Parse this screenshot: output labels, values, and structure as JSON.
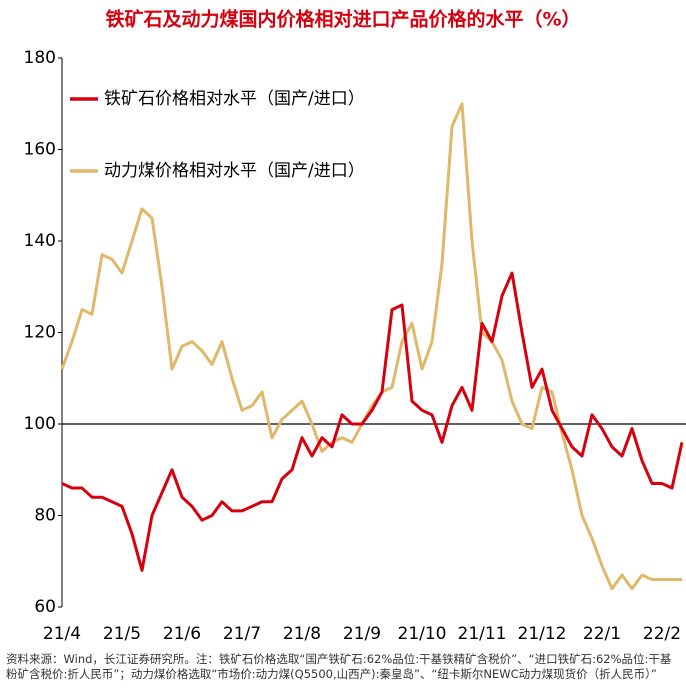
{
  "chart_data": {
    "type": "line",
    "title": "铁矿石及动力煤国内价格相对进口产品价格的水平（%）",
    "categories": [
      "21/4",
      null,
      null,
      null,
      null,
      null,
      "21/5",
      null,
      null,
      null,
      null,
      null,
      "21/6",
      null,
      null,
      null,
      null,
      null,
      "21/7",
      null,
      null,
      null,
      null,
      null,
      "21/8",
      null,
      null,
      null,
      null,
      null,
      "21/9",
      null,
      null,
      null,
      null,
      null,
      "21/10",
      null,
      null,
      null,
      null,
      null,
      "21/11",
      null,
      null,
      null,
      null,
      null,
      "21/12",
      null,
      null,
      null,
      null,
      null,
      "22/1",
      null,
      null,
      null,
      null,
      null,
      "22/2",
      null,
      null
    ],
    "series": [
      {
        "name": "铁矿石价格相对水平（国产/进口）",
        "color": "#d7000f",
        "values": [
          87,
          86,
          86,
          84,
          84,
          83,
          82,
          76,
          68,
          80,
          85,
          90,
          84,
          82,
          79,
          80,
          83,
          81,
          81,
          82,
          83,
          83,
          88,
          90,
          97,
          93,
          97,
          95,
          102,
          100,
          100,
          103,
          107,
          125,
          126,
          105,
          103,
          102,
          96,
          104,
          108,
          103,
          122,
          118,
          128,
          133,
          120,
          108,
          112,
          103,
          99,
          95,
          93,
          102,
          99,
          95,
          93,
          99,
          92,
          87,
          87,
          86,
          96
        ]
      },
      {
        "name": "动力煤价格相对水平（国产/进口）",
        "color": "#e0b86a",
        "values": [
          112,
          118,
          125,
          124,
          137,
          136,
          133,
          140,
          147,
          145,
          130,
          112,
          117,
          118,
          116,
          113,
          118,
          110,
          103,
          104,
          107,
          97,
          101,
          103,
          105,
          100,
          94,
          96,
          97,
          96,
          100,
          104,
          107,
          108,
          118,
          122,
          112,
          118,
          135,
          165,
          170,
          140,
          120,
          118,
          114,
          105,
          100,
          99,
          108,
          107,
          98,
          90,
          80,
          75,
          69,
          64,
          67,
          64,
          67,
          66,
          66,
          66,
          66
        ]
      }
    ],
    "ylim": [
      60,
      180
    ],
    "yticks": [
      60,
      80,
      100,
      120,
      140,
      160,
      180
    ],
    "reference_line": 100,
    "legend": "upper left"
  },
  "footnote": "资料来源：Wind，长江证券研究所。注：铁矿石价格选取“国产铁矿石:62%品位:干基铁精矿含税价”、“进口铁矿石:62%品位:干基粉矿含税价:折人民币”；动力煤价格选取“市场价:动力煤(Q5500,山西产):秦皇岛”、“纽卡斯尔NEWC动力煤现货价（折人民币）”"
}
